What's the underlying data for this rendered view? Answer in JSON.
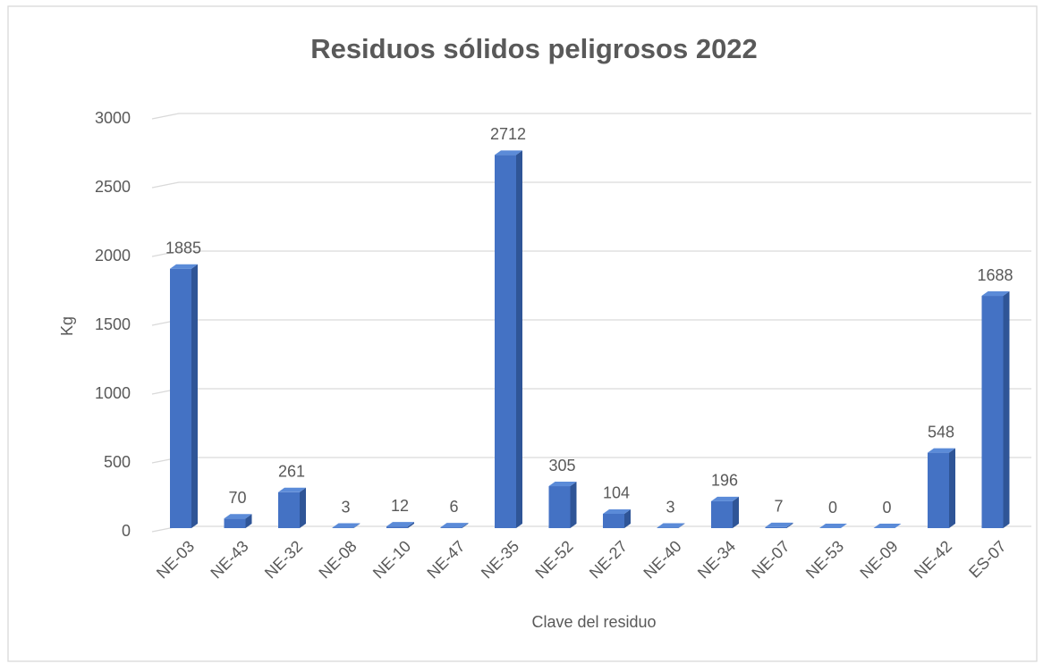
{
  "chart_data": {
    "type": "bar",
    "title": "Residuos sólidos peligrosos 2022",
    "x_label": "Clave del residuo",
    "y_label": "Kg",
    "categories": [
      "NE-03",
      "NE-43",
      "NE-32",
      "NE-08",
      "NE-10",
      "NE-47",
      "NE-35",
      "NE-52",
      "NE-27",
      "NE-40",
      "NE-34",
      "NE-07",
      "NE-53",
      "NE-09",
      "NE-42",
      "ES-07"
    ],
    "values": [
      1885,
      70,
      261,
      3,
      12,
      6,
      2712,
      305,
      104,
      3,
      196,
      7,
      0,
      0,
      548,
      1688
    ],
    "color": "#4472c4",
    "ylim": [
      0,
      3000
    ],
    "yticks": [
      0,
      500,
      1000,
      1500,
      2000,
      2500,
      3000
    ],
    "grid": true
  }
}
